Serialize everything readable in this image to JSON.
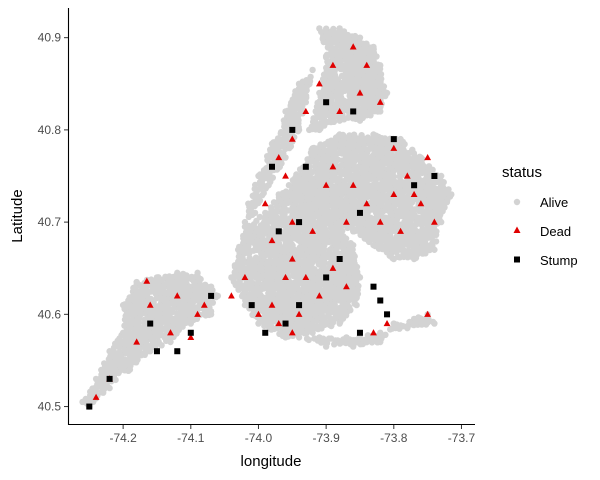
{
  "chart_data": {
    "type": "scatter",
    "title": "",
    "xlabel": "longitude",
    "ylabel": "Latitude",
    "xlim": [
      -74.28,
      -73.68
    ],
    "ylim": [
      40.48,
      40.93
    ],
    "x_ticks": [
      -74.2,
      -74.1,
      -74.0,
      -73.9,
      -73.8,
      -73.7
    ],
    "x_tick_labels": [
      "-74.2",
      "-74.1",
      "-74.0",
      "-73.9",
      "-73.8",
      "-73.7"
    ],
    "y_ticks": [
      40.5,
      40.6,
      40.7,
      40.8,
      40.9
    ],
    "y_tick_labels": [
      "40.5",
      "40.6",
      "40.7",
      "40.8",
      "40.9"
    ],
    "grid": false,
    "legend": {
      "title": "status",
      "position": "right",
      "entries": [
        {
          "label": "Alive",
          "shape": "circle",
          "color": "#d3d3d3"
        },
        {
          "label": "Dead",
          "shape": "triangle",
          "color": "#e00000"
        },
        {
          "label": "Stump",
          "shape": "square",
          "color": "#000000"
        }
      ]
    },
    "series": [
      {
        "name": "Alive",
        "color": "#d3d3d3",
        "shape": "circle",
        "regions": [
          {
            "polygon": [
              [
                -74.25,
                40.5
              ],
              [
                -74.22,
                40.52
              ],
              [
                -74.19,
                40.54
              ],
              [
                -74.16,
                40.56
              ],
              [
                -74.13,
                40.57
              ],
              [
                -74.1,
                40.59
              ],
              [
                -74.07,
                40.6
              ],
              [
                -74.06,
                40.62
              ],
              [
                -74.07,
                40.63
              ],
              [
                -74.09,
                40.645
              ],
              [
                -74.12,
                40.645
              ],
              [
                -74.15,
                40.64
              ],
              [
                -74.18,
                40.635
              ],
              [
                -74.2,
                40.61
              ],
              [
                -74.2,
                40.58
              ],
              [
                -74.22,
                40.56
              ],
              [
                -74.24,
                40.53
              ],
              [
                -74.26,
                40.505
              ]
            ]
          },
          {
            "polygon": [
              [
                -74.04,
                40.64
              ],
              [
                -74.02,
                40.61
              ],
              [
                -74.0,
                40.59
              ],
              [
                -73.96,
                40.575
              ],
              [
                -73.92,
                40.58
              ],
              [
                -73.88,
                40.59
              ],
              [
                -73.855,
                40.61
              ],
              [
                -73.85,
                40.64
              ],
              [
                -73.86,
                40.675
              ],
              [
                -73.88,
                40.7
              ],
              [
                -73.91,
                40.725
              ],
              [
                -73.94,
                40.74
              ],
              [
                -73.97,
                40.73
              ],
              [
                -73.99,
                40.71
              ],
              [
                -74.02,
                40.695
              ],
              [
                -74.03,
                40.67
              ]
            ]
          },
          {
            "polygon": [
              [
                -73.955,
                40.74
              ],
              [
                -73.92,
                40.78
              ],
              [
                -73.88,
                40.795
              ],
              [
                -73.83,
                40.795
              ],
              [
                -73.79,
                40.79
              ],
              [
                -73.76,
                40.77
              ],
              [
                -73.73,
                40.75
              ],
              [
                -73.715,
                40.73
              ],
              [
                -73.73,
                40.7
              ],
              [
                -73.74,
                40.67
              ],
              [
                -73.77,
                40.66
              ],
              [
                -73.8,
                40.66
              ],
              [
                -73.83,
                40.675
              ],
              [
                -73.86,
                40.69
              ],
              [
                -73.9,
                40.705
              ],
              [
                -73.93,
                40.72
              ]
            ]
          },
          {
            "polygon": [
              [
                -74.02,
                40.7
              ],
              [
                -74.005,
                40.71
              ],
              [
                -73.985,
                40.74
              ],
              [
                -73.96,
                40.77
              ],
              [
                -73.94,
                40.8
              ],
              [
                -73.93,
                40.83
              ],
              [
                -73.92,
                40.865
              ],
              [
                -73.94,
                40.85
              ],
              [
                -73.96,
                40.82
              ],
              [
                -73.98,
                40.785
              ],
              [
                -74.0,
                40.75
              ],
              [
                -74.015,
                40.72
              ]
            ]
          },
          {
            "polygon": [
              [
                -73.925,
                40.8
              ],
              [
                -73.91,
                40.84
              ],
              [
                -73.9,
                40.88
              ],
              [
                -73.91,
                40.91
              ],
              [
                -73.88,
                40.91
              ],
              [
                -73.85,
                40.9
              ],
              [
                -73.83,
                40.89
              ],
              [
                -73.82,
                40.87
              ],
              [
                -73.81,
                40.84
              ],
              [
                -73.82,
                40.82
              ],
              [
                -73.85,
                40.81
              ],
              [
                -73.88,
                40.81
              ],
              [
                -73.91,
                40.8
              ]
            ]
          },
          {
            "polygon": [
              [
                -73.94,
                40.575
              ],
              [
                -73.9,
                40.565
              ],
              [
                -73.86,
                40.565
              ],
              [
                -73.82,
                40.57
              ],
              [
                -73.8,
                40.59
              ],
              [
                -73.77,
                40.595
              ],
              [
                -73.75,
                40.6
              ],
              [
                -73.74,
                40.59
              ],
              [
                -73.78,
                40.585
              ],
              [
                -73.82,
                40.58
              ],
              [
                -73.87,
                40.575
              ],
              [
                -73.91,
                40.575
              ]
            ]
          }
        ]
      },
      {
        "name": "Dead",
        "color": "#e00000",
        "shape": "triangle",
        "points": [
          {
            "x": -74.24,
            "y": 40.51
          },
          {
            "x": -74.22,
            "y": 40.53
          },
          {
            "x": -74.18,
            "y": 40.57
          },
          {
            "x": -74.165,
            "y": 40.636
          },
          {
            "x": -74.16,
            "y": 40.61
          },
          {
            "x": -74.13,
            "y": 40.58
          },
          {
            "x": -74.1,
            "y": 40.575
          },
          {
            "x": -74.09,
            "y": 40.6
          },
          {
            "x": -74.08,
            "y": 40.61
          },
          {
            "x": -74.12,
            "y": 40.62
          },
          {
            "x": -74.04,
            "y": 40.62
          },
          {
            "x": -74.02,
            "y": 40.64
          },
          {
            "x": -74.0,
            "y": 40.6
          },
          {
            "x": -73.98,
            "y": 40.61
          },
          {
            "x": -73.97,
            "y": 40.59
          },
          {
            "x": -73.95,
            "y": 40.58
          },
          {
            "x": -73.94,
            "y": 40.6
          },
          {
            "x": -73.96,
            "y": 40.64
          },
          {
            "x": -73.95,
            "y": 40.66
          },
          {
            "x": -73.93,
            "y": 40.64
          },
          {
            "x": -73.91,
            "y": 40.62
          },
          {
            "x": -73.89,
            "y": 40.65
          },
          {
            "x": -73.87,
            "y": 40.63
          },
          {
            "x": -73.92,
            "y": 40.69
          },
          {
            "x": -73.95,
            "y": 40.7
          },
          {
            "x": -73.98,
            "y": 40.68
          },
          {
            "x": -73.99,
            "y": 40.72
          },
          {
            "x": -73.96,
            "y": 40.75
          },
          {
            "x": -73.97,
            "y": 40.77
          },
          {
            "x": -73.95,
            "y": 40.79
          },
          {
            "x": -73.93,
            "y": 40.82
          },
          {
            "x": -73.91,
            "y": 40.85
          },
          {
            "x": -73.89,
            "y": 40.87
          },
          {
            "x": -73.86,
            "y": 40.89
          },
          {
            "x": -73.84,
            "y": 40.87
          },
          {
            "x": -73.85,
            "y": 40.84
          },
          {
            "x": -73.88,
            "y": 40.82
          },
          {
            "x": -73.82,
            "y": 40.83
          },
          {
            "x": -73.8,
            "y": 40.78
          },
          {
            "x": -73.78,
            "y": 40.75
          },
          {
            "x": -73.76,
            "y": 40.72
          },
          {
            "x": -73.75,
            "y": 40.77
          },
          {
            "x": -73.74,
            "y": 40.7
          },
          {
            "x": -73.79,
            "y": 40.69
          },
          {
            "x": -73.82,
            "y": 40.7
          },
          {
            "x": -73.84,
            "y": 40.72
          },
          {
            "x": -73.86,
            "y": 40.74
          },
          {
            "x": -73.89,
            "y": 40.76
          },
          {
            "x": -73.9,
            "y": 40.74
          },
          {
            "x": -73.87,
            "y": 40.7
          },
          {
            "x": -73.83,
            "y": 40.58
          },
          {
            "x": -73.81,
            "y": 40.59
          },
          {
            "x": -73.75,
            "y": 40.6
          },
          {
            "x": -73.8,
            "y": 40.73
          },
          {
            "x": -73.77,
            "y": 40.73
          }
        ]
      },
      {
        "name": "Stump",
        "color": "#000000",
        "shape": "square",
        "points": [
          {
            "x": -74.25,
            "y": 40.5
          },
          {
            "x": -74.22,
            "y": 40.53
          },
          {
            "x": -74.16,
            "y": 40.59
          },
          {
            "x": -74.15,
            "y": 40.56
          },
          {
            "x": -74.12,
            "y": 40.56
          },
          {
            "x": -74.1,
            "y": 40.58
          },
          {
            "x": -74.07,
            "y": 40.62
          },
          {
            "x": -74.01,
            "y": 40.61
          },
          {
            "x": -73.99,
            "y": 40.58
          },
          {
            "x": -73.96,
            "y": 40.59
          },
          {
            "x": -73.94,
            "y": 40.61
          },
          {
            "x": -73.9,
            "y": 40.64
          },
          {
            "x": -73.88,
            "y": 40.66
          },
          {
            "x": -73.94,
            "y": 40.7
          },
          {
            "x": -73.97,
            "y": 40.69
          },
          {
            "x": -73.98,
            "y": 40.76
          },
          {
            "x": -73.95,
            "y": 40.8
          },
          {
            "x": -73.9,
            "y": 40.83
          },
          {
            "x": -73.86,
            "y": 40.82
          },
          {
            "x": -73.8,
            "y": 40.79
          },
          {
            "x": -73.74,
            "y": 40.75
          },
          {
            "x": -73.77,
            "y": 40.74
          },
          {
            "x": -73.85,
            "y": 40.71
          },
          {
            "x": -73.83,
            "y": 40.63
          },
          {
            "x": -73.82,
            "y": 40.615
          },
          {
            "x": -73.81,
            "y": 40.6
          },
          {
            "x": -73.85,
            "y": 40.58
          },
          {
            "x": -73.93,
            "y": 40.76
          }
        ]
      }
    ]
  }
}
